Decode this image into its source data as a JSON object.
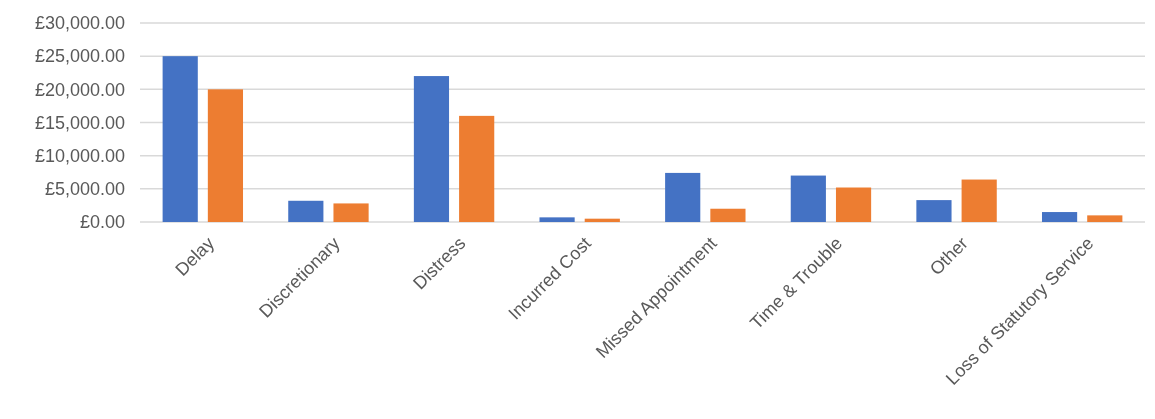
{
  "chart_data": {
    "type": "bar",
    "categories": [
      "Delay",
      "Discretionary",
      "Distress",
      "Incurred Cost",
      "Missed Appointment",
      "Time & Trouble",
      "Other",
      "Loss of Statutory Service"
    ],
    "series": [
      {
        "color": "#4472c4",
        "values": [
          25000,
          3200,
          22000,
          700,
          7400,
          7000,
          3300,
          1500
        ]
      },
      {
        "color": "#ed7d31",
        "values": [
          20000,
          2800,
          16000,
          500,
          2000,
          5200,
          6400,
          1000
        ]
      }
    ],
    "ylim": [
      0,
      30000
    ],
    "yticks": [
      {
        "value": 0,
        "label": "£0.00"
      },
      {
        "value": 5000,
        "label": "£5,000.00"
      },
      {
        "value": 10000,
        "label": "£10,000.00"
      },
      {
        "value": 15000,
        "label": "£15,000.00"
      },
      {
        "value": 20000,
        "label": "£20,000.00"
      },
      {
        "value": 25000,
        "label": "£25,000.00"
      },
      {
        "value": 30000,
        "label": "£30,000.00"
      }
    ],
    "grid": "y"
  }
}
